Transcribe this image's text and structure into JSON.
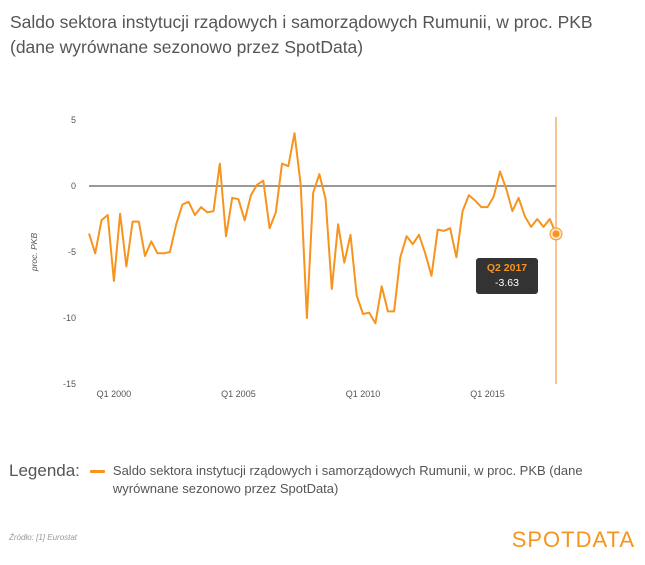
{
  "title": "Saldo sektora instytucji rządowych i samorządowych Rumunii, w proc. PKB (dane wyrównane sezonowo przez SpotData)",
  "legend": {
    "title": "Legenda:",
    "label": "Saldo sektora instytucji rządowych i samorządowych Rumunii, w proc. PKB (dane wyrównane sezonowo przez SpotData)"
  },
  "source": "Źródło: [1] Eurostat",
  "brand": "SPOTDATA",
  "tooltip": {
    "label": "Q2 2017",
    "value": "-3.63"
  },
  "colors": {
    "series": "#f7941d",
    "axis": "#333333",
    "crosshair": "#f08a24"
  },
  "chart_data": {
    "type": "line",
    "ylabel": "proc. PKB",
    "ylim": [
      -15,
      5
    ],
    "yticks": [
      "5",
      "0",
      "-5",
      "-10",
      "-15"
    ],
    "x_start": "Q1 1999",
    "x_ticks": [
      "Q1 2000",
      "Q1 2005",
      "Q1 2010",
      "Q1 2015"
    ],
    "series": [
      {
        "name": "Saldo sektora instytucji rządowych i samorządowych Rumunii, w proc. PKB (dane wyrównane sezonowo przez SpotData)",
        "values": [
          -3.6,
          -5.1,
          -2.6,
          -2.2,
          -7.2,
          -2.1,
          -6.1,
          -2.7,
          -2.7,
          -5.3,
          -4.2,
          -5.1,
          -5.1,
          -5.0,
          -2.9,
          -1.4,
          -1.2,
          -2.2,
          -1.6,
          -2.0,
          -1.9,
          1.7,
          -3.8,
          -0.9,
          -1.0,
          -2.6,
          -0.7,
          0.1,
          0.4,
          -3.2,
          -2.0,
          1.7,
          1.5,
          4.0,
          0.1,
          -10.0,
          -0.5,
          0.9,
          -1.0,
          -7.8,
          -2.9,
          -5.8,
          -3.7,
          -8.3,
          -9.7,
          -9.6,
          -10.4,
          -7.6,
          -9.5,
          -9.5,
          -5.4,
          -3.8,
          -4.4,
          -3.7,
          -5.1,
          -6.8,
          -3.3,
          -3.4,
          -3.2,
          -5.4,
          -1.9,
          -0.7,
          -1.1,
          -1.6,
          -1.6,
          -0.8,
          1.1,
          -0.2,
          -1.9,
          -0.9,
          -2.3,
          -3.1,
          -2.5,
          -3.1,
          -2.5,
          -3.63
        ]
      }
    ],
    "last_point": {
      "label": "Q2 2017",
      "value": -3.63
    },
    "grid": false,
    "legend_position": "bottom"
  }
}
